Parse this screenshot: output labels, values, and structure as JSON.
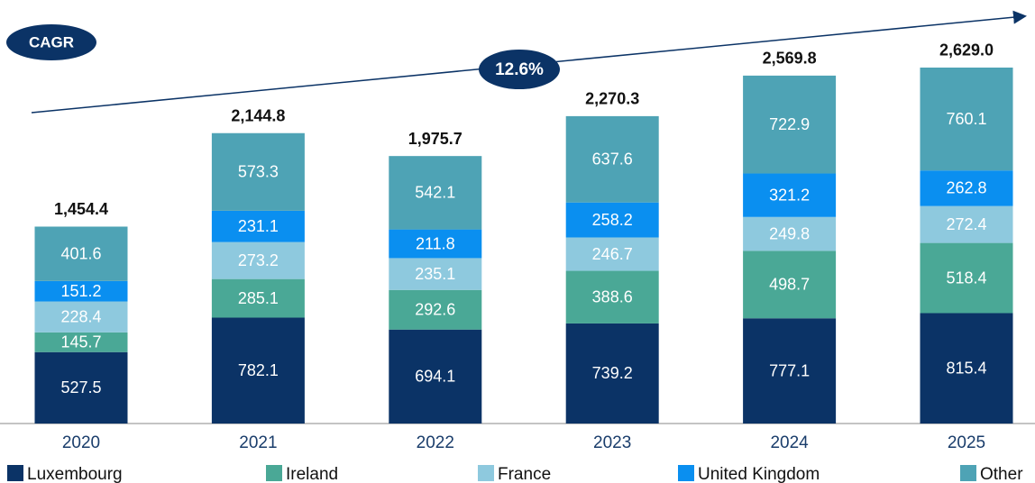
{
  "chart_data": {
    "type": "stacked_bar",
    "categories": [
      "2020",
      "2021",
      "2022",
      "2023",
      "2024",
      "2025"
    ],
    "series": [
      {
        "name": "Luxembourg",
        "color": "#0b3366",
        "values": [
          527.5,
          782.1,
          694.1,
          739.2,
          777.1,
          815.4
        ]
      },
      {
        "name": "Ireland",
        "color": "#4aa896",
        "values": [
          145.7,
          285.1,
          292.6,
          388.6,
          498.7,
          518.4
        ]
      },
      {
        "name": "France",
        "color": "#8ec9de",
        "values": [
          228.4,
          273.2,
          235.1,
          246.7,
          249.8,
          272.4
        ]
      },
      {
        "name": "United Kingdom",
        "color": "#0a8ff0",
        "values": [
          151.2,
          231.1,
          211.8,
          258.2,
          321.2,
          262.8
        ]
      },
      {
        "name": "Other",
        "color": "#4ea3b5",
        "values": [
          401.6,
          573.3,
          542.1,
          637.6,
          722.9,
          760.1
        ]
      }
    ],
    "totals": [
      1454.4,
      2144.8,
      1975.7,
      2270.3,
      2569.8,
      2629.0
    ],
    "total_labels": [
      "1,454.4",
      "2,144.8",
      "1,975.7",
      "2,270.3",
      "2,569.8",
      "2,629.0"
    ],
    "annotations": {
      "label": "CAGR",
      "value": "12.6%"
    },
    "legend": "bottom"
  }
}
